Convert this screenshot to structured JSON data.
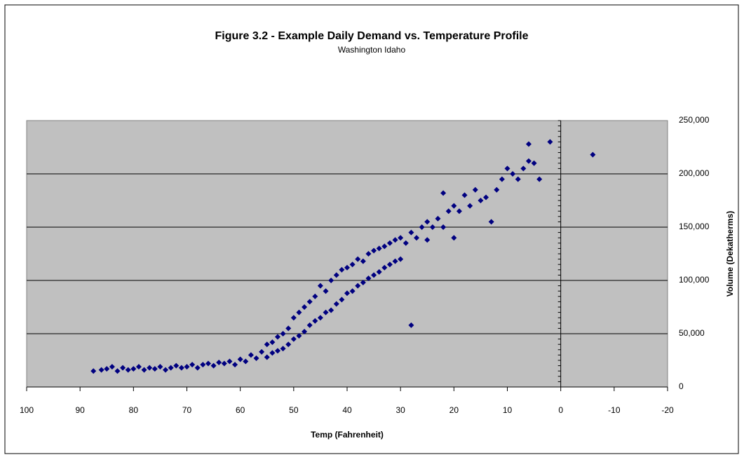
{
  "chart_data": {
    "type": "scatter",
    "title": "Figure 3.2 - Example Daily Demand vs. Temperature Profile",
    "subtitle": "Washington Idaho",
    "x_label": "Temp (Fahrenheit)",
    "y_label": "Volume (Dekatherms)",
    "color": "#000080",
    "grid": true,
    "xlim": [
      100,
      -20
    ],
    "xticks": [
      100,
      90,
      80,
      70,
      60,
      50,
      40,
      30,
      20,
      10,
      0,
      -10,
      -20
    ],
    "ylim": [
      0,
      250000
    ],
    "yticks": [
      0,
      {
        "value": 50000,
        "label": "50,000"
      },
      {
        "value": 100000,
        "label": "100,000"
      },
      {
        "value": 150000,
        "label": "150,000"
      },
      {
        "value": 200000,
        "label": "200,000"
      },
      {
        "value": 250000,
        "label": "250,000"
      }
    ],
    "x": [
      87.5,
      86,
      85,
      84,
      83,
      82,
      81,
      80,
      79,
      78,
      77,
      76,
      75,
      74,
      73,
      72,
      71,
      70,
      69,
      68,
      67,
      66,
      65,
      64,
      63,
      62,
      61,
      60,
      59,
      58,
      57,
      56,
      55,
      55,
      54,
      54,
      53,
      53,
      52,
      52,
      51,
      51,
      50,
      50,
      49,
      49,
      48,
      48,
      47,
      47,
      46,
      46,
      45,
      45,
      44,
      44,
      43,
      43,
      42,
      42,
      41,
      41,
      40,
      40,
      39,
      39,
      38,
      38,
      37,
      37,
      36,
      36,
      35,
      35,
      34,
      34,
      33,
      33,
      32,
      32,
      31,
      31,
      30,
      30,
      29,
      28,
      28,
      27,
      26,
      25,
      25,
      24,
      23,
      22,
      22,
      21,
      20,
      20,
      19,
      18,
      17,
      16,
      15,
      14,
      13,
      12,
      11,
      10,
      9,
      8,
      7,
      6,
      6,
      5,
      4,
      2,
      -6
    ],
    "values": [
      15000,
      16000,
      17000,
      19000,
      15000,
      18000,
      16000,
      17000,
      19000,
      16000,
      18000,
      17000,
      19000,
      16000,
      18000,
      20000,
      18000,
      19000,
      21000,
      18000,
      21000,
      22000,
      20000,
      23000,
      22000,
      24000,
      21000,
      26000,
      24000,
      30000,
      27000,
      33000,
      40000,
      28000,
      42000,
      32000,
      47000,
      34000,
      50000,
      36000,
      55000,
      40000,
      65000,
      45000,
      70000,
      48000,
      75000,
      52000,
      80000,
      58000,
      85000,
      62000,
      95000,
      65000,
      90000,
      70000,
      100000,
      72000,
      105000,
      78000,
      110000,
      82000,
      112000,
      88000,
      115000,
      90000,
      120000,
      95000,
      118000,
      98000,
      125000,
      102000,
      128000,
      105000,
      130000,
      108000,
      132000,
      112000,
      135000,
      115000,
      138000,
      118000,
      140000,
      120000,
      135000,
      58000,
      145000,
      140000,
      150000,
      155000,
      138000,
      150000,
      158000,
      182000,
      150000,
      165000,
      170000,
      140000,
      165000,
      180000,
      170000,
      185000,
      175000,
      178000,
      155000,
      185000,
      195000,
      205000,
      200000,
      195000,
      205000,
      228000,
      212000,
      210000,
      195000,
      230000,
      218000
    ]
  }
}
